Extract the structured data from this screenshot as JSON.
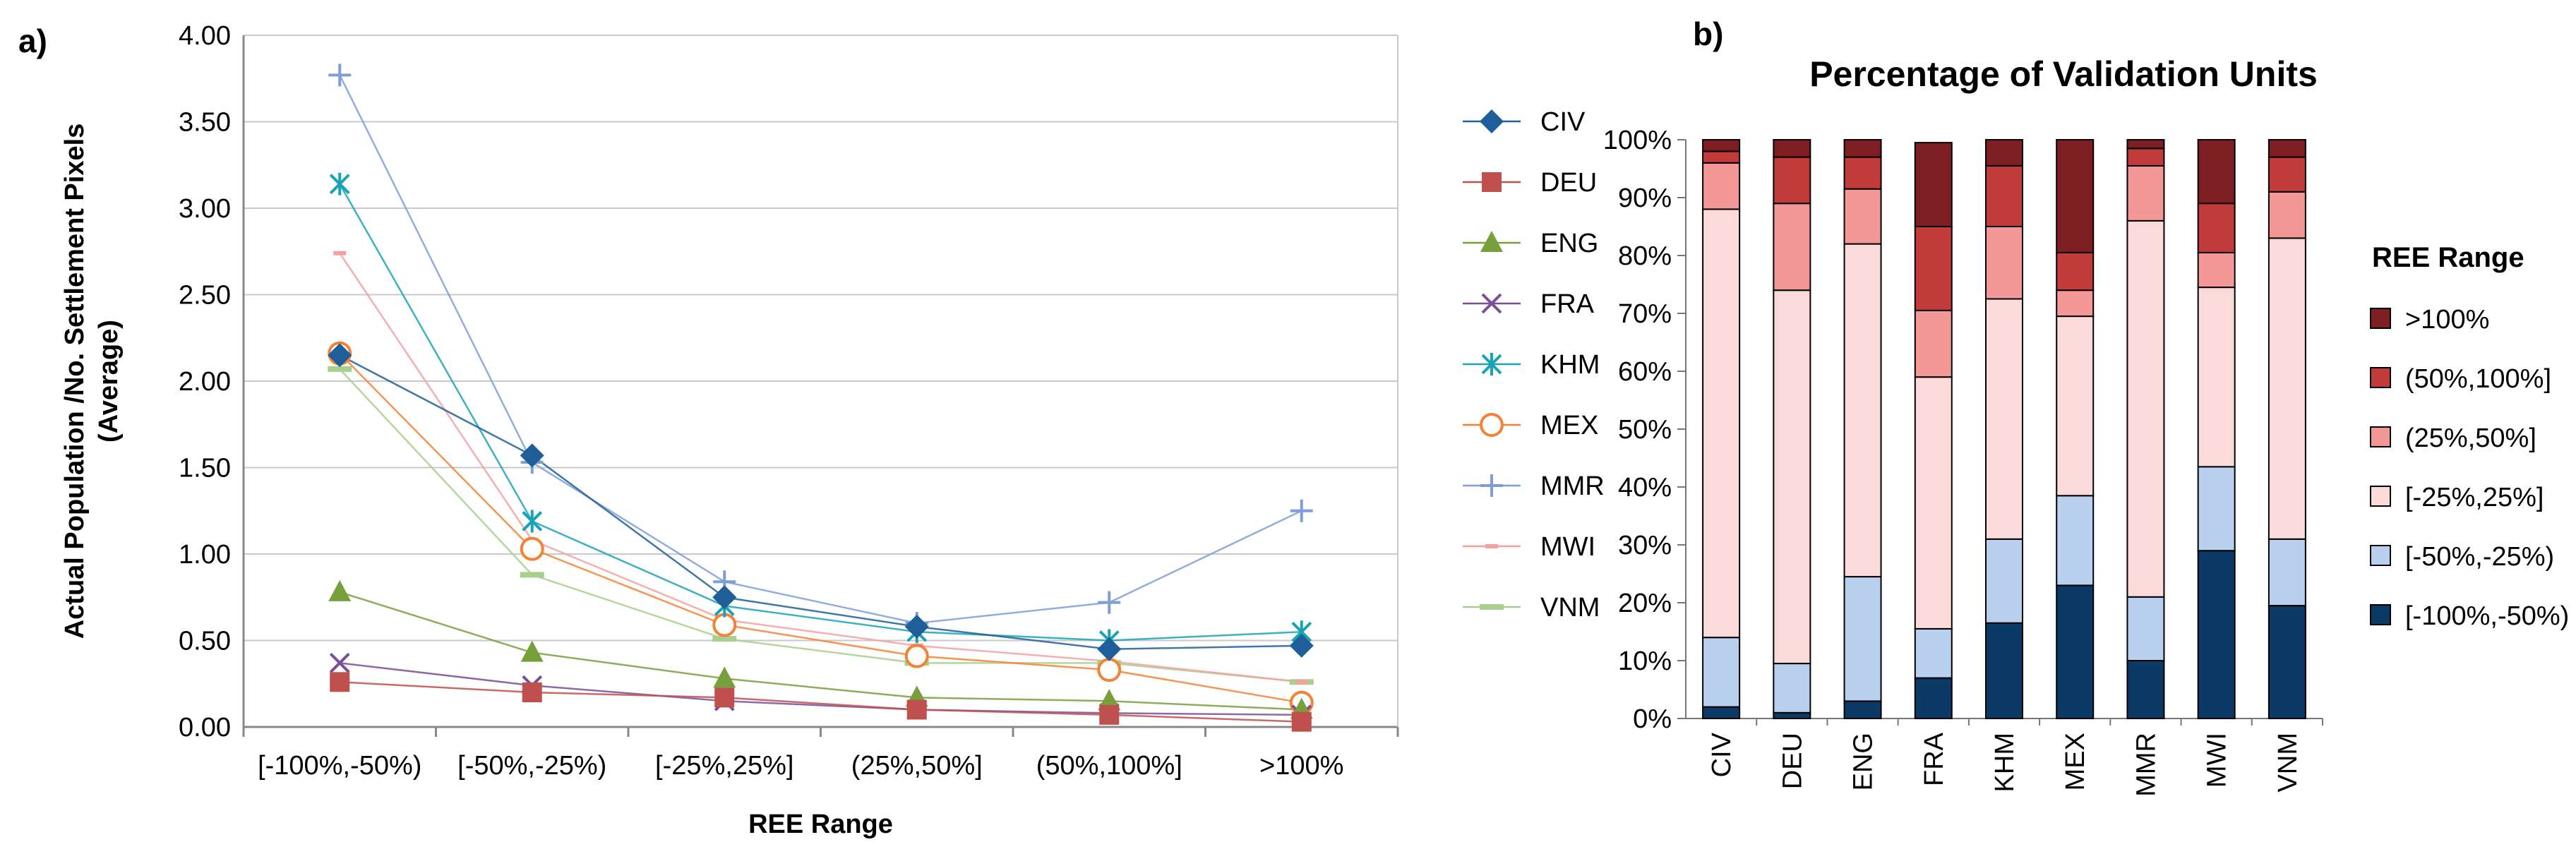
{
  "panel_a": {
    "label": "a)"
  },
  "panel_b": {
    "label": "b)"
  },
  "chart_data": [
    {
      "type": "line",
      "title": "",
      "xlabel": "REE Range",
      "ylabel": "Actual Population /No. Settlement  Pixels (Average)",
      "ylabel_lines": [
        "Actual Population /No. Settlement  Pixels",
        "(Average)"
      ],
      "ylim": [
        0,
        4
      ],
      "yticks": [
        "0.00",
        "0.50",
        "1.00",
        "1.50",
        "2.00",
        "2.50",
        "3.00",
        "3.50",
        "4.00"
      ],
      "categories": [
        "[-100%,-50%)",
        "[-50%,-25%)",
        "[-25%,25%]",
        "(25%,50%]",
        "(50%,100%]",
        ">100%"
      ],
      "grid": true,
      "legend_position": "right",
      "series": [
        {
          "name": "CIV",
          "color": "#1f5f99",
          "marker": "diamond",
          "values": [
            2.15,
            1.57,
            0.75,
            0.58,
            0.45,
            0.47
          ]
        },
        {
          "name": "DEU",
          "color": "#c0504d",
          "marker": "square",
          "values": [
            0.26,
            0.2,
            0.17,
            0.1,
            0.07,
            0.03
          ]
        },
        {
          "name": "ENG",
          "color": "#77a03c",
          "marker": "triangle",
          "values": [
            0.78,
            0.43,
            0.28,
            0.17,
            0.15,
            0.1
          ]
        },
        {
          "name": "FRA",
          "color": "#7a4f9a",
          "marker": "x",
          "values": [
            0.37,
            0.24,
            0.15,
            0.1,
            0.08,
            0.07
          ]
        },
        {
          "name": "KHM",
          "color": "#1aa3b7",
          "marker": "asterisk",
          "values": [
            3.14,
            1.19,
            0.7,
            0.55,
            0.5,
            0.55
          ]
        },
        {
          "name": "MEX",
          "color": "#f48234",
          "marker": "circle",
          "values": [
            2.16,
            1.03,
            0.59,
            0.41,
            0.33,
            0.14
          ]
        },
        {
          "name": "MMR",
          "color": "#7f9ed8",
          "marker": "plus",
          "values": [
            3.77,
            1.53,
            0.84,
            0.6,
            0.72,
            1.25
          ]
        },
        {
          "name": "MWI",
          "color": "#f2a1a0",
          "marker": "dash",
          "values": [
            2.74,
            1.08,
            0.62,
            0.47,
            0.38,
            0.26
          ]
        },
        {
          "name": "VNM",
          "color": "#a8cf8e",
          "marker": "bar",
          "values": [
            2.07,
            0.88,
            0.51,
            0.37,
            0.37,
            0.26
          ]
        }
      ]
    },
    {
      "type": "bar",
      "stacked": true,
      "title": "Percentage of Validation Units",
      "xlabel": "",
      "ylabel": "",
      "ylim": [
        0,
        100
      ],
      "yticks": [
        "0%",
        "10%",
        "20%",
        "30%",
        "40%",
        "50%",
        "60%",
        "70%",
        "80%",
        "90%",
        "100%"
      ],
      "categories": [
        "CIV",
        "DEU",
        "ENG",
        "FRA",
        "KHM",
        "MEX",
        "MMR",
        "MWI",
        "VNM"
      ],
      "legend_title": "REE Range",
      "legend_position": "right",
      "series": [
        {
          "name": "[-100%,-50%)",
          "color": "#0b3a66",
          "values": [
            2,
            1,
            3,
            7,
            16.5,
            23,
            10,
            29,
            19.5
          ]
        },
        {
          "name": "[-50%,-25%)",
          "color": "#b9d1ee",
          "values": [
            12,
            8.5,
            21.5,
            8.5,
            14.5,
            15.5,
            11,
            14.5,
            11.5
          ]
        },
        {
          "name": "[-25%,25%]",
          "color": "#fbdada",
          "values": [
            74,
            64.5,
            57.5,
            43.5,
            41.5,
            31,
            65,
            31,
            52
          ]
        },
        {
          "name": "(25%,50%]",
          "color": "#f49797",
          "values": [
            8,
            15,
            9.5,
            11.5,
            12.5,
            4.5,
            9.5,
            6,
            8
          ]
        },
        {
          "name": "(50%,100%]",
          "color": "#c23b3b",
          "values": [
            2,
            8,
            5.5,
            14.5,
            10.5,
            6.5,
            3,
            8.5,
            6
          ]
        },
        {
          "name": ">100%",
          "color": "#7d1f22",
          "values": [
            2,
            3,
            3,
            14.5,
            4.5,
            19.5,
            1.5,
            11,
            3
          ]
        }
      ]
    }
  ]
}
